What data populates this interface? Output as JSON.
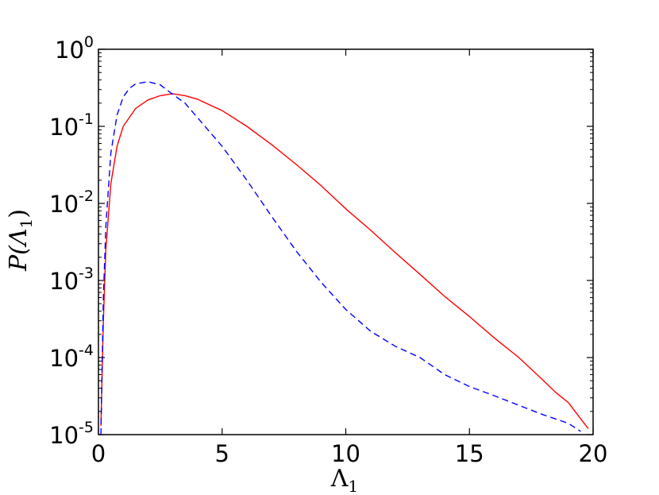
{
  "chart_data": {
    "type": "line",
    "xlabel": "Λ",
    "xlabel_sub": "1",
    "ylabel_prefix": "P(Λ",
    "ylabel_sub": "1",
    "ylabel_suffix": ")",
    "xlim": [
      0,
      20
    ],
    "ylim": [
      1e-05,
      1
    ],
    "yscale": "log",
    "grid": false,
    "xticks": [
      {
        "value": 0,
        "label": "0"
      },
      {
        "value": 5,
        "label": "5"
      },
      {
        "value": 10,
        "label": "10"
      },
      {
        "value": 15,
        "label": "15"
      },
      {
        "value": 20,
        "label": "20"
      }
    ],
    "yticks": [
      {
        "value": 1,
        "base": "10",
        "exp": "0"
      },
      {
        "value": 0.1,
        "base": "10",
        "exp": "-1"
      },
      {
        "value": 0.01,
        "base": "10",
        "exp": "-2"
      },
      {
        "value": 0.001,
        "base": "10",
        "exp": "-3"
      },
      {
        "value": 0.0001,
        "base": "10",
        "exp": "-4"
      },
      {
        "value": 1e-05,
        "base": "10",
        "exp": "-5"
      }
    ],
    "series": [
      {
        "color": "#ff0000",
        "style": "solid",
        "x": [
          0.1,
          0.2,
          0.3,
          0.5,
          0.75,
          1.0,
          1.5,
          2.0,
          2.5,
          3.0,
          3.5,
          4.0,
          5.0,
          6.0,
          7.0,
          8.0,
          9.0,
          10.0,
          11.0,
          12.0,
          13.0,
          14.0,
          15.0,
          16.0,
          17.0,
          18.0,
          18.5,
          19.0,
          19.5,
          19.8
        ],
        "y": [
          1.3e-05,
          0.0003,
          0.0025,
          0.018,
          0.055,
          0.1,
          0.17,
          0.22,
          0.25,
          0.265,
          0.25,
          0.225,
          0.16,
          0.1,
          0.058,
          0.032,
          0.017,
          0.0085,
          0.0045,
          0.0023,
          0.0012,
          0.00062,
          0.00034,
          0.00018,
          0.0001,
          5e-05,
          3.5e-05,
          2.6e-05,
          1.6e-05,
          1.2e-05
        ]
      },
      {
        "color": "#0000ff",
        "style": "dashed",
        "x": [
          0.1,
          0.2,
          0.3,
          0.5,
          0.75,
          1.0,
          1.25,
          1.5,
          2.0,
          2.5,
          3.0,
          3.5,
          4.0,
          5.0,
          6.0,
          7.0,
          8.0,
          9.0,
          10.0,
          11.0,
          12.0,
          13.0,
          14.0,
          15.0,
          16.0,
          17.0,
          18.0,
          19.0,
          19.5
        ],
        "y": [
          1e-05,
          0.0006,
          0.005,
          0.045,
          0.14,
          0.24,
          0.31,
          0.355,
          0.38,
          0.345,
          0.26,
          0.2,
          0.13,
          0.055,
          0.02,
          0.0068,
          0.0024,
          0.00095,
          0.00042,
          0.00022,
          0.00014,
          0.0001,
          6e-05,
          4.2e-05,
          3.2e-05,
          2.4e-05,
          1.8e-05,
          1.4e-05,
          1.1e-05
        ]
      }
    ]
  }
}
